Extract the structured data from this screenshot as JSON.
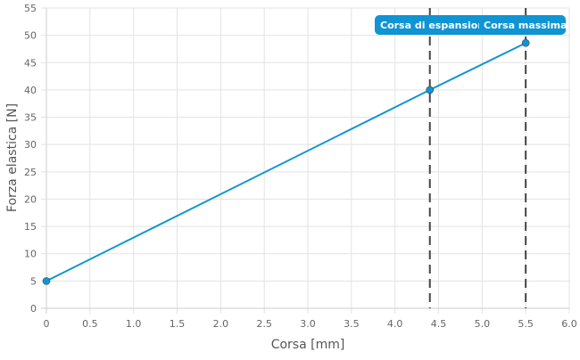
{
  "chart_data": {
    "type": "line",
    "xlabel": "Corsa [mm]",
    "ylabel": "Forza elastica [N]",
    "xlim": [
      0,
      6
    ],
    "ylim": [
      0,
      55
    ],
    "xticks": [
      "0",
      "0.5",
      "1.0",
      "1.5",
      "2.0",
      "2.5",
      "3.0",
      "3.5",
      "4.0",
      "4.5",
      "5.0",
      "5.5",
      "6.0"
    ],
    "yticks": [
      "0",
      "5",
      "10",
      "15",
      "20",
      "25",
      "30",
      "35",
      "40",
      "45",
      "50",
      "55"
    ],
    "grid": true,
    "series": [
      {
        "name": "Forza elastica",
        "color": "#0f94d4",
        "x": [
          0,
          4.4,
          5.5
        ],
        "y": [
          5,
          40,
          48.6
        ]
      }
    ],
    "annotations": [
      {
        "x": 4.4,
        "label": "Corsa di espansione",
        "style": "dashed",
        "color": "#444444"
      },
      {
        "x": 5.5,
        "label": "Corsa massima",
        "style": "dashed",
        "color": "#444444"
      }
    ]
  }
}
